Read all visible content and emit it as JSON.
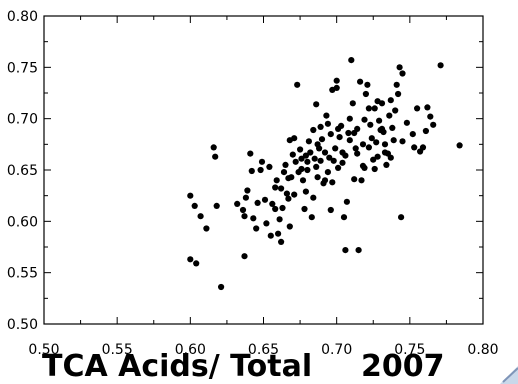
{
  "chart_data": {
    "type": "scatter",
    "title": "",
    "xlabel": "TCA Acids/ Total",
    "ylabel": "",
    "annotation": "2007",
    "xlim": [
      0.5,
      0.8
    ],
    "ylim": [
      0.5,
      0.8
    ],
    "x_ticks": [
      "0.50",
      "0.55",
      "0.60",
      "0.65",
      "0.70",
      "0.75",
      "0.80"
    ],
    "y_ticks": [
      "0.50",
      "0.55",
      "0.60",
      "0.65",
      "0.70",
      "0.75",
      "0.80"
    ],
    "grid": false,
    "colors": {
      "points": "#000000",
      "axis": "#000000"
    },
    "series": [
      {
        "points": [
          [
            0.6,
            0.625
          ],
          [
            0.603,
            0.615
          ],
          [
            0.607,
            0.605
          ],
          [
            0.611,
            0.593
          ],
          [
            0.616,
            0.672
          ],
          [
            0.617,
            0.663
          ],
          [
            0.618,
            0.615
          ],
          [
            0.6,
            0.563
          ],
          [
            0.604,
            0.559
          ],
          [
            0.621,
            0.536
          ],
          [
            0.632,
            0.617
          ],
          [
            0.636,
            0.611
          ],
          [
            0.637,
            0.605
          ],
          [
            0.638,
            0.623
          ],
          [
            0.637,
            0.566
          ],
          [
            0.641,
            0.666
          ],
          [
            0.642,
            0.649
          ],
          [
            0.643,
            0.603
          ],
          [
            0.645,
            0.593
          ],
          [
            0.646,
            0.618
          ],
          [
            0.648,
            0.65
          ],
          [
            0.649,
            0.658
          ],
          [
            0.652,
            0.598
          ],
          [
            0.654,
            0.653
          ],
          [
            0.656,
            0.617
          ],
          [
            0.658,
            0.633
          ],
          [
            0.659,
            0.64
          ],
          [
            0.66,
            0.588
          ],
          [
            0.661,
            0.602
          ],
          [
            0.662,
            0.632
          ],
          [
            0.663,
            0.613
          ],
          [
            0.664,
            0.648
          ],
          [
            0.665,
            0.655
          ],
          [
            0.666,
            0.627
          ],
          [
            0.667,
            0.622
          ],
          [
            0.668,
            0.595
          ],
          [
            0.669,
            0.643
          ],
          [
            0.67,
            0.665
          ],
          [
            0.671,
            0.681
          ],
          [
            0.672,
            0.658
          ],
          [
            0.673,
            0.733
          ],
          [
            0.674,
            0.648
          ],
          [
            0.675,
            0.67
          ],
          [
            0.676,
            0.661
          ],
          [
            0.677,
            0.64
          ],
          [
            0.678,
            0.612
          ],
          [
            0.679,
            0.629
          ],
          [
            0.68,
            0.65
          ],
          [
            0.681,
            0.678
          ],
          [
            0.682,
            0.667
          ],
          [
            0.683,
            0.604
          ],
          [
            0.684,
            0.689
          ],
          [
            0.685,
            0.661
          ],
          [
            0.686,
            0.653
          ],
          [
            0.687,
            0.643
          ],
          [
            0.688,
            0.671
          ],
          [
            0.689,
            0.659
          ],
          [
            0.69,
            0.68
          ],
          [
            0.691,
            0.637
          ],
          [
            0.692,
            0.667
          ],
          [
            0.693,
            0.703
          ],
          [
            0.694,
            0.648
          ],
          [
            0.695,
            0.662
          ],
          [
            0.696,
            0.685
          ],
          [
            0.697,
            0.638
          ],
          [
            0.698,
            0.659
          ],
          [
            0.699,
            0.671
          ],
          [
            0.7,
            0.737
          ],
          [
            0.7,
            0.73
          ],
          [
            0.701,
            0.652
          ],
          [
            0.702,
            0.682
          ],
          [
            0.703,
            0.693
          ],
          [
            0.704,
            0.667
          ],
          [
            0.705,
            0.604
          ],
          [
            0.706,
            0.572
          ],
          [
            0.707,
            0.619
          ],
          [
            0.708,
            0.686
          ],
          [
            0.709,
            0.7
          ],
          [
            0.71,
            0.757
          ],
          [
            0.711,
            0.715
          ],
          [
            0.712,
            0.686
          ],
          [
            0.713,
            0.671
          ],
          [
            0.714,
            0.666
          ],
          [
            0.715,
            0.572
          ],
          [
            0.716,
            0.736
          ],
          [
            0.717,
            0.64
          ],
          [
            0.718,
            0.675
          ],
          [
            0.719,
            0.652
          ],
          [
            0.72,
            0.724
          ],
          [
            0.721,
            0.733
          ],
          [
            0.722,
            0.71
          ],
          [
            0.723,
            0.694
          ],
          [
            0.724,
            0.681
          ],
          [
            0.725,
            0.66
          ],
          [
            0.726,
            0.71
          ],
          [
            0.727,
            0.677
          ],
          [
            0.728,
            0.663
          ],
          [
            0.729,
            0.698
          ],
          [
            0.73,
            0.689
          ],
          [
            0.731,
            0.715
          ],
          [
            0.732,
            0.687
          ],
          [
            0.733,
            0.675
          ],
          [
            0.734,
            0.655
          ],
          [
            0.735,
            0.666
          ],
          [
            0.736,
            0.703
          ],
          [
            0.737,
            0.718
          ],
          [
            0.738,
            0.691
          ],
          [
            0.739,
            0.679
          ],
          [
            0.74,
            0.708
          ],
          [
            0.741,
            0.733
          ],
          [
            0.742,
            0.724
          ],
          [
            0.743,
            0.75
          ],
          [
            0.744,
            0.604
          ],
          [
            0.745,
            0.678
          ],
          [
            0.748,
            0.696
          ],
          [
            0.752,
            0.685
          ],
          [
            0.755,
            0.71
          ],
          [
            0.757,
            0.668
          ],
          [
            0.759,
            0.672
          ],
          [
            0.761,
            0.688
          ],
          [
            0.762,
            0.711
          ],
          [
            0.764,
            0.702
          ],
          [
            0.766,
            0.694
          ],
          [
            0.771,
            0.752
          ],
          [
            0.784,
            0.674
          ],
          [
            0.668,
            0.679
          ],
          [
            0.676,
            0.651
          ],
          [
            0.684,
            0.623
          ],
          [
            0.692,
            0.64
          ],
          [
            0.696,
            0.611
          ],
          [
            0.704,
            0.657
          ],
          [
            0.712,
            0.641
          ],
          [
            0.718,
            0.654
          ],
          [
            0.726,
            0.651
          ],
          [
            0.733,
            0.667
          ],
          [
            0.701,
            0.69
          ],
          [
            0.709,
            0.679
          ],
          [
            0.694,
            0.695
          ],
          [
            0.687,
            0.675
          ],
          [
            0.679,
            0.664
          ],
          [
            0.658,
            0.612
          ],
          [
            0.651,
            0.621
          ],
          [
            0.667,
            0.642
          ],
          [
            0.68,
            0.658
          ],
          [
            0.689,
            0.692
          ],
          [
            0.706,
            0.664
          ],
          [
            0.714,
            0.69
          ],
          [
            0.722,
            0.672
          ],
          [
            0.731,
            0.69
          ],
          [
            0.737,
            0.662
          ],
          [
            0.639,
            0.63
          ],
          [
            0.662,
            0.58
          ],
          [
            0.655,
            0.586
          ],
          [
            0.671,
            0.626
          ],
          [
            0.686,
            0.714
          ],
          [
            0.697,
            0.728
          ],
          [
            0.719,
            0.699
          ],
          [
            0.728,
            0.717
          ],
          [
            0.745,
            0.744
          ],
          [
            0.753,
            0.672
          ]
        ]
      }
    ]
  }
}
